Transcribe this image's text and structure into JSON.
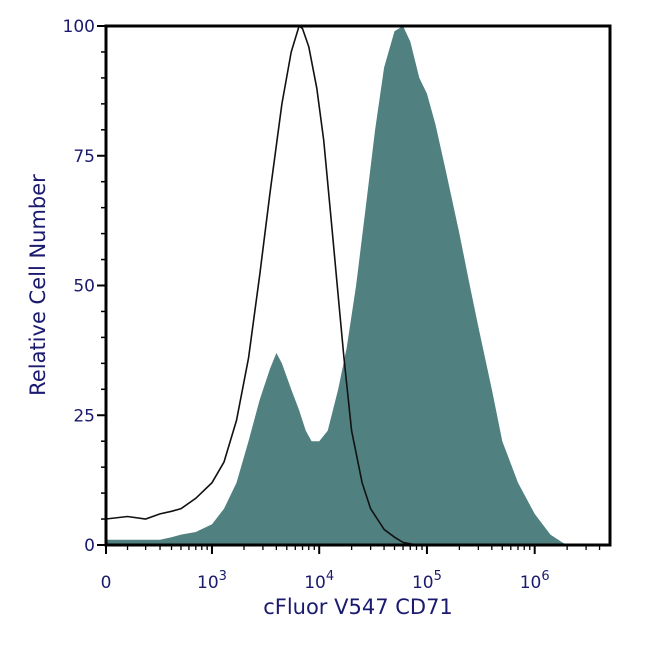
{
  "chart_data": {
    "type": "area",
    "xlabel": "cFluor V547 CD71",
    "ylabel": "Relative Cell Number",
    "xscale": "biexponential (linear near 0, log above)",
    "xlim": [
      0,
      5000000
    ],
    "ylim": [
      0,
      100
    ],
    "y_ticks": [
      "0",
      "25",
      "50",
      "75",
      "100"
    ],
    "x_ticks": [
      {
        "value": 0,
        "base": "0",
        "exp": ""
      },
      {
        "value": 1000,
        "base": "10",
        "exp": "3"
      },
      {
        "value": 10000,
        "base": "10",
        "exp": "4"
      },
      {
        "value": 100000,
        "base": "10",
        "exp": "5"
      },
      {
        "value": 1000000,
        "base": "10",
        "exp": "6"
      }
    ],
    "grid": false,
    "legend": "none",
    "series": [
      {
        "style": "filled",
        "color": "#508080",
        "points": [
          [
            0,
            1
          ],
          [
            100,
            1
          ],
          [
            200,
            1
          ],
          [
            300,
            1
          ],
          [
            400,
            1.5
          ],
          [
            500,
            2
          ],
          [
            700,
            2.5
          ],
          [
            1000,
            4
          ],
          [
            1300,
            7
          ],
          [
            1700,
            12
          ],
          [
            2200,
            20
          ],
          [
            2800,
            28
          ],
          [
            3500,
            34
          ],
          [
            4000,
            37
          ],
          [
            4500,
            35
          ],
          [
            5500,
            30
          ],
          [
            6500,
            26
          ],
          [
            7500,
            22
          ],
          [
            8500,
            20
          ],
          [
            10000,
            20
          ],
          [
            12000,
            22
          ],
          [
            15000,
            30
          ],
          [
            18000,
            38
          ],
          [
            22000,
            50
          ],
          [
            27000,
            65
          ],
          [
            33000,
            80
          ],
          [
            40000,
            92
          ],
          [
            50000,
            99
          ],
          [
            60000,
            100
          ],
          [
            70000,
            97
          ],
          [
            85000,
            90
          ],
          [
            100000,
            87
          ],
          [
            120000,
            81
          ],
          [
            150000,
            72
          ],
          [
            200000,
            60
          ],
          [
            250000,
            50
          ],
          [
            300000,
            42
          ],
          [
            400000,
            30
          ],
          [
            500000,
            20
          ],
          [
            700000,
            12
          ],
          [
            1000000,
            6
          ],
          [
            1400000,
            2
          ],
          [
            1800000,
            0.5
          ],
          [
            2000000,
            0
          ]
        ]
      },
      {
        "style": "outline",
        "color": "#111111",
        "points": [
          [
            0,
            5
          ],
          [
            100,
            5.5
          ],
          [
            200,
            5
          ],
          [
            300,
            6
          ],
          [
            400,
            6.5
          ],
          [
            500,
            7
          ],
          [
            700,
            9
          ],
          [
            1000,
            12
          ],
          [
            1300,
            16
          ],
          [
            1700,
            24
          ],
          [
            2200,
            36
          ],
          [
            2800,
            52
          ],
          [
            3500,
            68
          ],
          [
            4500,
            85
          ],
          [
            5500,
            95
          ],
          [
            6500,
            100
          ],
          [
            7000,
            99.5
          ],
          [
            8000,
            96
          ],
          [
            9500,
            88
          ],
          [
            11000,
            78
          ],
          [
            13000,
            62
          ],
          [
            15000,
            48
          ],
          [
            17000,
            36
          ],
          [
            20000,
            22
          ],
          [
            25000,
            12
          ],
          [
            30000,
            7
          ],
          [
            40000,
            3
          ],
          [
            50000,
            1.5
          ],
          [
            60000,
            0.5
          ],
          [
            80000,
            0
          ]
        ]
      }
    ]
  }
}
